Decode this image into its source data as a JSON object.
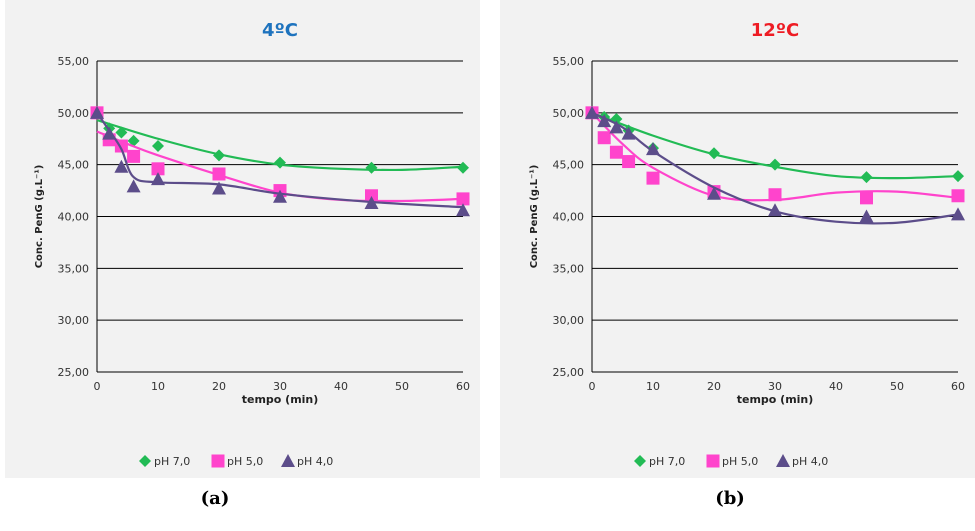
{
  "captions": [
    "(a)",
    "(b)"
  ],
  "legend": [
    {
      "label": "pH 7,0",
      "color": "#22bb55",
      "marker": "diamond"
    },
    {
      "label": "pH 5,0",
      "color": "#ff44cc",
      "marker": "square"
    },
    {
      "label": "pH 4,0",
      "color": "#5c4d8a",
      "marker": "triangle"
    }
  ],
  "chart_data": [
    {
      "type": "scatter",
      "title": "4ºC",
      "title_color": "#1e73be",
      "xlabel": "tempo (min)",
      "ylabel": "Conc. PenG (g.L⁻¹)",
      "xlim": [
        0,
        60
      ],
      "ylim": [
        25,
        55
      ],
      "xticks": [
        0,
        10,
        20,
        30,
        40,
        50,
        60
      ],
      "xtick_labels": [
        "0",
        "10",
        "20",
        "30",
        "40",
        "50",
        "60"
      ],
      "yticks": [
        25,
        30,
        35,
        40,
        45,
        50,
        55
      ],
      "ytick_labels": [
        "25,00",
        "30,00",
        "35,00",
        "40,00",
        "45,00",
        "50,00",
        "55,00"
      ],
      "grid": "horizontal",
      "legend_position": "bottom",
      "series": [
        {
          "name": "pH 7,0",
          "points": [
            [
              0,
              50.0
            ],
            [
              2,
              48.5
            ],
            [
              4,
              48.1
            ],
            [
              6,
              47.3
            ],
            [
              10,
              46.8
            ],
            [
              20,
              45.9
            ],
            [
              30,
              45.2
            ],
            [
              45,
              44.7
            ],
            [
              60,
              44.7
            ]
          ],
          "trend": [
            [
              0,
              49.3
            ],
            [
              10,
              47.5
            ],
            [
              20,
              46.0
            ],
            [
              30,
              45.0
            ],
            [
              40,
              44.6
            ],
            [
              50,
              44.5
            ],
            [
              60,
              44.8
            ]
          ]
        },
        {
          "name": "pH 5,0",
          "points": [
            [
              0,
              50.0
            ],
            [
              2,
              47.4
            ],
            [
              4,
              46.8
            ],
            [
              6,
              45.8
            ],
            [
              10,
              44.6
            ],
            [
              20,
              44.1
            ],
            [
              30,
              42.5
            ],
            [
              45,
              42.0
            ],
            [
              60,
              41.7
            ]
          ],
          "trend": [
            [
              0,
              48.2
            ],
            [
              5,
              47.0
            ],
            [
              10,
              45.9
            ],
            [
              20,
              44.0
            ],
            [
              30,
              42.3
            ],
            [
              40,
              41.6
            ],
            [
              50,
              41.5
            ],
            [
              60,
              41.7
            ]
          ]
        },
        {
          "name": "pH 4,0",
          "points": [
            [
              0,
              50.0
            ],
            [
              2,
              48.0
            ],
            [
              4,
              44.8
            ],
            [
              6,
              42.9
            ],
            [
              10,
              43.6
            ],
            [
              20,
              42.7
            ],
            [
              30,
              41.9
            ],
            [
              45,
              41.3
            ],
            [
              60,
              40.6
            ]
          ],
          "trend": [
            [
              0,
              50.0
            ],
            [
              2,
              48.3
            ],
            [
              4,
              46.5
            ],
            [
              6,
              43.8
            ],
            [
              10,
              43.3
            ],
            [
              20,
              43.1
            ],
            [
              30,
              42.2
            ],
            [
              45,
              41.4
            ],
            [
              60,
              40.9
            ]
          ]
        }
      ]
    },
    {
      "type": "scatter",
      "title": "12ºC",
      "title_color": "#ee1c24",
      "xlabel": "tempo (min)",
      "ylabel": "Conc. PenG (g.L⁻¹)",
      "xlim": [
        0,
        60
      ],
      "ylim": [
        25,
        55
      ],
      "xticks": [
        0,
        10,
        20,
        30,
        40,
        50,
        60
      ],
      "xtick_labels": [
        "0",
        "10",
        "20",
        "30",
        "40",
        "50",
        "60"
      ],
      "yticks": [
        25,
        30,
        35,
        40,
        45,
        50,
        55
      ],
      "ytick_labels": [
        "25,00",
        "30,00",
        "35,00",
        "40,00",
        "45,00",
        "50,00",
        "55,00"
      ],
      "grid": "horizontal",
      "legend_position": "bottom",
      "series": [
        {
          "name": "pH 7,0",
          "points": [
            [
              0,
              50.0
            ],
            [
              2,
              49.6
            ],
            [
              4,
              49.4
            ],
            [
              6,
              48.3
            ],
            [
              10,
              46.6
            ],
            [
              20,
              46.1
            ],
            [
              30,
              45.0
            ],
            [
              45,
              43.8
            ],
            [
              60,
              43.9
            ]
          ],
          "trend": [
            [
              0,
              50.0
            ],
            [
              10,
              47.8
            ],
            [
              20,
              46.0
            ],
            [
              30,
              44.8
            ],
            [
              40,
              43.9
            ],
            [
              50,
              43.7
            ],
            [
              60,
              43.9
            ]
          ]
        },
        {
          "name": "pH 5,0",
          "points": [
            [
              0,
              50.0
            ],
            [
              2,
              47.6
            ],
            [
              4,
              46.2
            ],
            [
              6,
              45.3
            ],
            [
              10,
              43.7
            ],
            [
              20,
              42.4
            ],
            [
              30,
              42.1
            ],
            [
              45,
              41.8
            ],
            [
              60,
              42.0
            ]
          ],
          "trend": [
            [
              0,
              50.0
            ],
            [
              5,
              47.0
            ],
            [
              10,
              44.7
            ],
            [
              20,
              42.0
            ],
            [
              30,
              41.6
            ],
            [
              40,
              42.3
            ],
            [
              50,
              42.4
            ],
            [
              60,
              41.8
            ]
          ]
        },
        {
          "name": "pH 4,0",
          "points": [
            [
              0,
              50.0
            ],
            [
              2,
              49.2
            ],
            [
              4,
              48.6
            ],
            [
              6,
              48.0
            ],
            [
              10,
              46.5
            ],
            [
              20,
              42.2
            ],
            [
              30,
              40.6
            ],
            [
              45,
              40.0
            ],
            [
              60,
              40.2
            ]
          ],
          "trend": [
            [
              0,
              50.0
            ],
            [
              5,
              48.6
            ],
            [
              10,
              46.3
            ],
            [
              20,
              42.8
            ],
            [
              30,
              40.5
            ],
            [
              40,
              39.5
            ],
            [
              50,
              39.4
            ],
            [
              60,
              40.2
            ]
          ]
        }
      ]
    }
  ]
}
